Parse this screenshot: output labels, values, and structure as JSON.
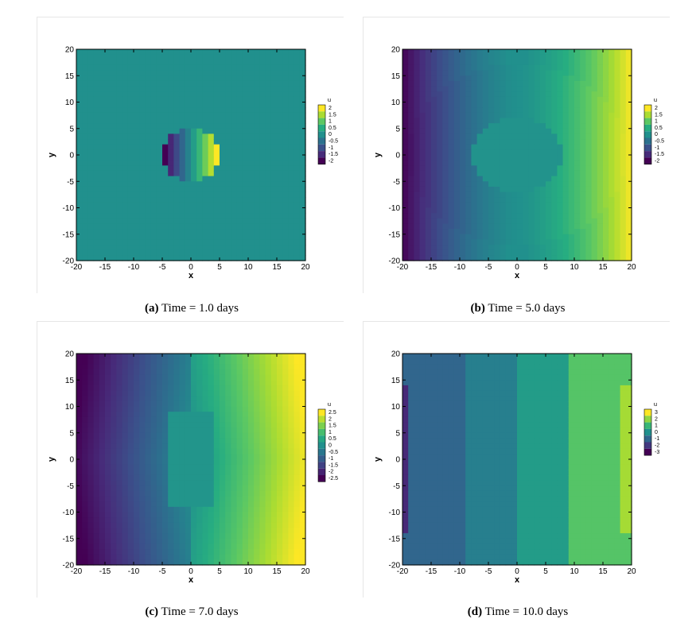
{
  "panels": [
    {
      "letter": "(a)",
      "text": "Time = 1.0 days"
    },
    {
      "letter": "(b)",
      "text": "Time = 5.0 days"
    },
    {
      "letter": "(c)",
      "text": "Time = 7.0 days"
    },
    {
      "letter": "(d)",
      "text": "Time = 10.0 days"
    }
  ],
  "colors": {
    "viridis": [
      "#440154",
      "#472c7a",
      "#3b518b",
      "#2c718e",
      "#21908d",
      "#27ad81",
      "#5cc863",
      "#aadc32",
      "#fde725"
    ]
  },
  "chart_data": [
    {
      "type": "heatmap",
      "xlabel": "x",
      "ylabel": "y",
      "xlim": [
        -20,
        20
      ],
      "ylim": [
        -20,
        20
      ],
      "x_ticks": [
        "-20",
        "-15",
        "-10",
        "-5",
        "0",
        "5",
        "10",
        "15",
        "20"
      ],
      "y_ticks": [
        "20",
        "15",
        "10",
        "5",
        "0",
        "-5",
        "-10",
        "-15",
        "-20"
      ],
      "colorbar_title": "u",
      "colorbar_labels": [
        "2",
        "1.5",
        "1",
        "0.5",
        "0",
        "-0.5",
        "-1",
        "-1.5",
        "-2"
      ],
      "value_range": [
        -2,
        2
      ]
    },
    {
      "type": "heatmap",
      "xlabel": "x",
      "ylabel": "y",
      "xlim": [
        -20,
        20
      ],
      "ylim": [
        -20,
        20
      ],
      "x_ticks": [
        "-20",
        "-15",
        "-10",
        "-5",
        "0",
        "5",
        "10",
        "15",
        "20"
      ],
      "y_ticks": [
        "20",
        "15",
        "10",
        "5",
        "0",
        "-5",
        "-10",
        "-15",
        "-20"
      ],
      "colorbar_title": "u",
      "colorbar_labels": [
        "2",
        "1.5",
        "1",
        "0.5",
        "0",
        "-0.5",
        "-1",
        "-1.5",
        "-2"
      ],
      "value_range": [
        -2,
        2
      ]
    },
    {
      "type": "heatmap",
      "xlabel": "x",
      "ylabel": "y",
      "xlim": [
        -20,
        20
      ],
      "ylim": [
        -20,
        20
      ],
      "x_ticks": [
        "-20",
        "-15",
        "-10",
        "-5",
        "0",
        "5",
        "10",
        "15",
        "20"
      ],
      "y_ticks": [
        "20",
        "15",
        "10",
        "5",
        "0",
        "-5",
        "-10",
        "-15",
        "-20"
      ],
      "colorbar_title": "u",
      "colorbar_labels": [
        "2.5",
        "2",
        "1.5",
        "1",
        "0.5",
        "0",
        "-0.5",
        "-1",
        "-1.5",
        "-2",
        "-2.5"
      ],
      "value_range": [
        -2.5,
        2.5
      ]
    },
    {
      "type": "heatmap",
      "xlabel": "x",
      "ylabel": "y",
      "xlim": [
        -20,
        20
      ],
      "ylim": [
        -20,
        20
      ],
      "x_ticks": [
        "-20",
        "-15",
        "-10",
        "-5",
        "0",
        "5",
        "10",
        "15",
        "20"
      ],
      "y_ticks": [
        "20",
        "15",
        "10",
        "5",
        "0",
        "-5",
        "-10",
        "-15",
        "-20"
      ],
      "colorbar_title": "u",
      "colorbar_labels": [
        "3",
        "2",
        "1",
        "0",
        "-1",
        "-2",
        "-3"
      ],
      "value_range": [
        -3,
        3
      ]
    }
  ]
}
